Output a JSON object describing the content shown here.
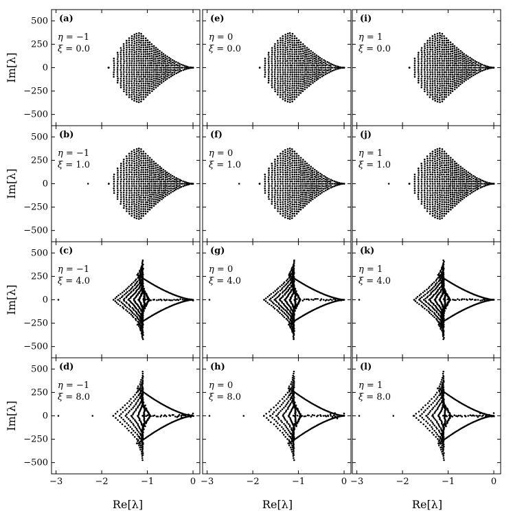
{
  "chart_data": {
    "type": "scatter",
    "layout": "4x3 grid of eigenvalue spectra",
    "xlabel": "Re[λ]",
    "ylabel": "Im[λ]",
    "xlim": [
      -3.1,
      0.15
    ],
    "ylim": [
      -620,
      620
    ],
    "x_ticks": [
      -3,
      -2,
      -1,
      0
    ],
    "x_tick_labels": [
      "−3",
      "−2",
      "−1",
      "0"
    ],
    "y_ticks": [
      500,
      250,
      0,
      -250,
      -500
    ],
    "y_tick_labels": [
      "500",
      "250",
      "0",
      "−250",
      "−500"
    ],
    "grid": false,
    "marker": "filled-circle",
    "color": "#000000",
    "panels": [
      {
        "letter": "(a)",
        "eta": "−1",
        "xi": "0.0",
        "eta_value": -1,
        "xi_value": 0.0,
        "col": 0,
        "row": 0
      },
      {
        "letter": "(b)",
        "eta": "−1",
        "xi": "1.0",
        "eta_value": -1,
        "xi_value": 1.0,
        "col": 0,
        "row": 1
      },
      {
        "letter": "(c)",
        "eta": "−1",
        "xi": "4.0",
        "eta_value": -1,
        "xi_value": 4.0,
        "col": 0,
        "row": 2
      },
      {
        "letter": "(d)",
        "eta": "−1",
        "xi": "8.0",
        "eta_value": -1,
        "xi_value": 8.0,
        "col": 0,
        "row": 3
      },
      {
        "letter": "(e)",
        "eta": "0",
        "xi": "0.0",
        "eta_value": 0,
        "xi_value": 0.0,
        "col": 1,
        "row": 0
      },
      {
        "letter": "(f)",
        "eta": "0",
        "xi": "1.0",
        "eta_value": 0,
        "xi_value": 1.0,
        "col": 1,
        "row": 1
      },
      {
        "letter": "(g)",
        "eta": "0",
        "xi": "4.0",
        "eta_value": 0,
        "xi_value": 4.0,
        "col": 1,
        "row": 2
      },
      {
        "letter": "(h)",
        "eta": "0",
        "xi": "8.0",
        "eta_value": 0,
        "xi_value": 8.0,
        "col": 1,
        "row": 3
      },
      {
        "letter": "(i)",
        "eta": "1",
        "xi": "0.0",
        "eta_value": 1,
        "xi_value": 0.0,
        "col": 2,
        "row": 0
      },
      {
        "letter": "(j)",
        "eta": "1",
        "xi": "1.0",
        "eta_value": 1,
        "xi_value": 1.0,
        "col": 2,
        "row": 1
      },
      {
        "letter": "(k)",
        "eta": "1",
        "xi": "4.0",
        "eta_value": 1,
        "xi_value": 4.0,
        "col": 2,
        "row": 2
      },
      {
        "letter": "(l)",
        "eta": "1",
        "xi": "8.0",
        "eta_value": 1,
        "xi_value": 8.0,
        "col": 2,
        "row": 3
      }
    ],
    "spectrum_envelope": {
      "note": "Eigenvalues fill a leaf-shaped region; left tip near Re=-1.9, widest |Im|≈370 near Re=-1.15, cusp converging to Re≈0",
      "left_tip_re": -1.85,
      "widest_re": -1.15,
      "max_abs_im": 370
    },
    "outliers": [
      {
        "row": 1,
        "re": -2.3,
        "im": 0
      },
      {
        "row": 2,
        "re": -2.95,
        "im": 0
      },
      {
        "row": 3,
        "re": -2.95,
        "im": 0
      },
      {
        "row": 3,
        "re": -2.2,
        "im": 0
      }
    ]
  }
}
